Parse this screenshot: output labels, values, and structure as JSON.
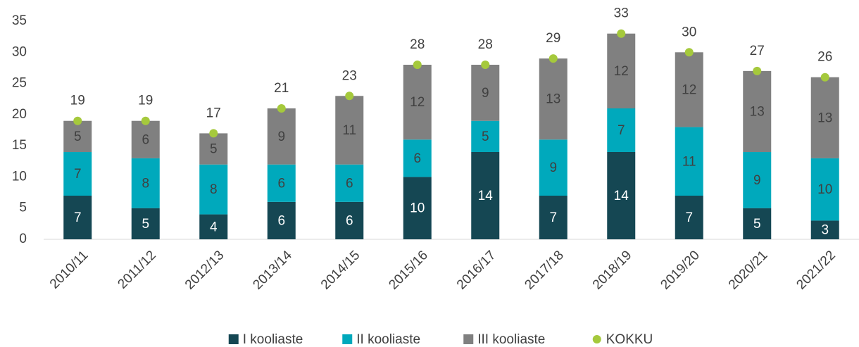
{
  "chart_data": {
    "type": "stacked_bar",
    "categories": [
      "2010/11",
      "2011/12",
      "2012/13",
      "2013/14",
      "2014/15",
      "2015/16",
      "2016/17",
      "2017/18",
      "2018/19",
      "2019/20",
      "2020/21",
      "2021/22"
    ],
    "series": [
      {
        "name": "I kooliaste",
        "color": "#154753",
        "values": [
          7,
          5,
          4,
          6,
          6,
          10,
          14,
          7,
          14,
          7,
          5,
          3
        ]
      },
      {
        "name": "II kooliaste",
        "color": "#00a9bc",
        "values": [
          7,
          8,
          8,
          6,
          6,
          6,
          5,
          9,
          7,
          11,
          9,
          10
        ]
      },
      {
        "name": "III kooliaste",
        "color": "#808080",
        "values": [
          5,
          6,
          5,
          9,
          11,
          12,
          9,
          13,
          12,
          12,
          13,
          13
        ]
      }
    ],
    "total": {
      "name": "KOKKU",
      "color": "#a5c93c",
      "values": [
        19,
        19,
        17,
        21,
        23,
        28,
        28,
        29,
        33,
        30,
        27,
        26
      ]
    },
    "ylim": [
      0,
      35
    ],
    "yticks": [
      0,
      5,
      10,
      15,
      20,
      25,
      30,
      35
    ],
    "grid": false,
    "legend": "bottom"
  }
}
